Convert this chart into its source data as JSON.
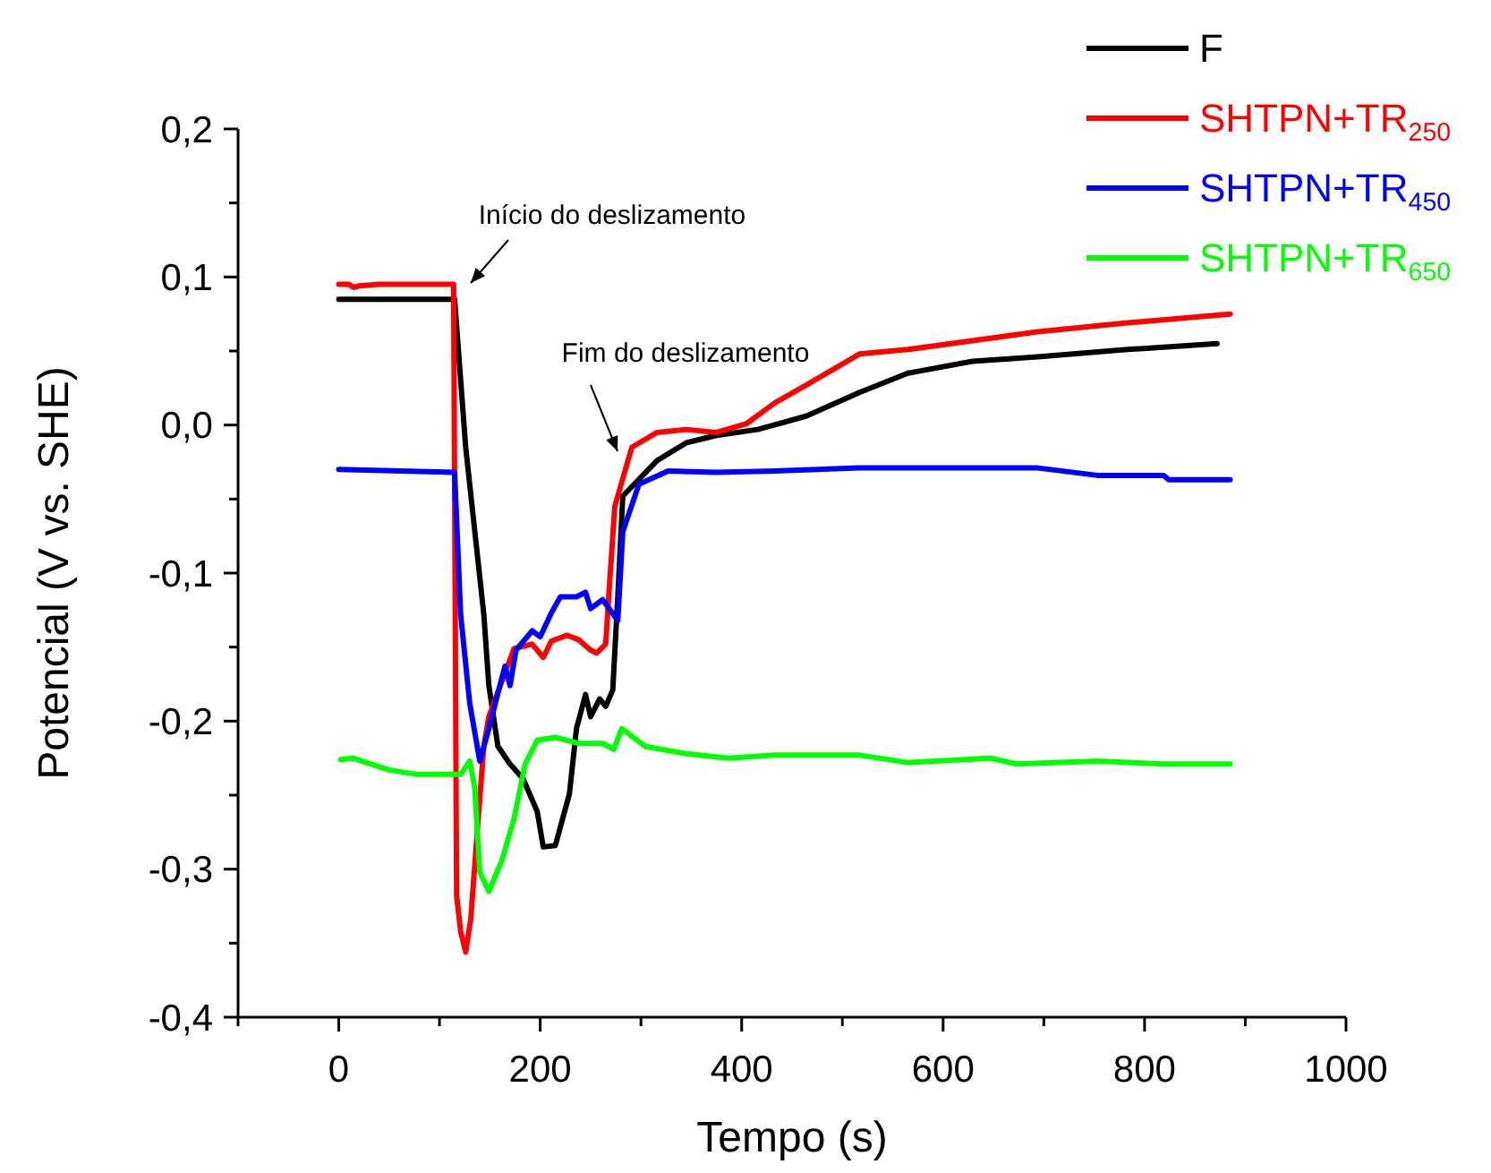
{
  "chart_data": {
    "type": "line",
    "xlabel": "Tempo (s)",
    "ylabel": "Potencial (V  vs. SHE)",
    "xlim": [
      -100,
      1000
    ],
    "ylim": [
      -0.4,
      0.2
    ],
    "xticks": [
      {
        "value": -100,
        "label": null
      },
      0,
      {
        "value": 100,
        "label": null
      },
      200,
      {
        "value": 300,
        "label": null
      },
      400,
      {
        "value": 500,
        "label": null
      },
      600,
      {
        "value": 700,
        "label": null
      },
      800,
      {
        "value": 900,
        "label": null
      },
      1000
    ],
    "yticks": [
      {
        "value": -0.4,
        "label": "-0,4"
      },
      {
        "value": -0.35,
        "label": null
      },
      {
        "value": -0.3,
        "label": "-0,3"
      },
      {
        "value": -0.25,
        "label": null
      },
      {
        "value": -0.2,
        "label": "-0,2"
      },
      {
        "value": -0.15,
        "label": null
      },
      {
        "value": -0.1,
        "label": "-0,1"
      },
      {
        "value": -0.05,
        "label": null
      },
      {
        "value": 0,
        "label": "0,0"
      },
      {
        "value": 0.05,
        "label": null
      },
      {
        "value": 0.1,
        "label": "0,1"
      },
      {
        "value": 0.15,
        "label": null
      },
      {
        "value": 0.2,
        "label": "0,2"
      }
    ],
    "legend": "top right",
    "annotations": [
      "Início do deslizamento",
      "Fim do deslizamento"
    ],
    "series": [
      {
        "name": "F",
        "color": "#000000",
        "x": [
          0,
          115,
          126,
          144,
          149,
          158,
          170,
          183,
          197,
          203,
          215,
          229,
          236,
          245,
          250,
          259,
          265,
          272,
          277,
          282,
          316,
          345,
          375,
          416,
          464,
          517,
          565,
          629,
          694,
          783,
          872
        ],
        "values": [
          0.085,
          0.085,
          -0.015,
          -0.128,
          -0.176,
          -0.217,
          -0.229,
          -0.239,
          -0.261,
          -0.285,
          -0.284,
          -0.249,
          -0.205,
          -0.182,
          -0.197,
          -0.185,
          -0.19,
          -0.179,
          -0.116,
          -0.048,
          -0.024,
          -0.012,
          -0.007,
          -0.003,
          0.006,
          0.022,
          0.035,
          0.043,
          0.046,
          0.051,
          0.055
        ]
      },
      {
        "name": "SHTPN+TR$_{250}$",
        "color": "#ff0000",
        "x": [
          0,
          10,
          15,
          20,
          40,
          114,
          117,
          121,
          126,
          131,
          138,
          144,
          149,
          162,
          174,
          192,
          203,
          211,
          227,
          238,
          250,
          256,
          265,
          268,
          274,
          291,
          316,
          345,
          375,
          405,
          433,
          464,
          517,
          565,
          694,
          783,
          885
        ],
        "values": [
          0.095,
          0.095,
          0.093,
          0.094,
          0.095,
          0.095,
          -0.318,
          -0.342,
          -0.356,
          -0.334,
          -0.27,
          -0.217,
          -0.197,
          -0.173,
          -0.151,
          -0.148,
          -0.157,
          -0.146,
          -0.142,
          -0.145,
          -0.152,
          -0.154,
          -0.148,
          -0.116,
          -0.055,
          -0.015,
          -0.005,
          -0.003,
          -0.005,
          0.001,
          0.015,
          0.027,
          0.048,
          0.051,
          0.063,
          0.069,
          0.075
        ]
      },
      {
        "name": "SHTPN+TR$_{450}$",
        "color": "#0000ff",
        "x": [
          0,
          115,
          121,
          130,
          140,
          149,
          158,
          165,
          170,
          176,
          192,
          200,
          211,
          220,
          236,
          245,
          250,
          262,
          277,
          282,
          298,
          327,
          375,
          433,
          517,
          694,
          753,
          819,
          824,
          885
        ],
        "values": [
          -0.03,
          -0.032,
          -0.128,
          -0.188,
          -0.227,
          -0.205,
          -0.181,
          -0.163,
          -0.176,
          -0.152,
          -0.139,
          -0.143,
          -0.127,
          -0.116,
          -0.116,
          -0.113,
          -0.124,
          -0.118,
          -0.132,
          -0.072,
          -0.04,
          -0.031,
          -0.032,
          -0.031,
          -0.029,
          -0.029,
          -0.034,
          -0.034,
          -0.037,
          -0.037
        ]
      },
      {
        "name": "SHTPN+TR$_{650}$",
        "color": "#00ff00",
        "x": [
          2,
          14,
          50,
          78,
          121,
          130,
          135,
          140,
          149,
          162,
          174,
          185,
          197,
          215,
          238,
          262,
          273,
          281,
          304,
          345,
          387,
          433,
          517,
          565,
          647,
          673,
          753,
          819,
          885
        ],
        "values": [
          -0.226,
          -0.225,
          -0.233,
          -0.236,
          -0.236,
          -0.227,
          -0.245,
          -0.302,
          -0.315,
          -0.294,
          -0.266,
          -0.229,
          -0.213,
          -0.211,
          -0.215,
          -0.215,
          -0.219,
          -0.205,
          -0.217,
          -0.222,
          -0.225,
          -0.223,
          -0.223,
          -0.228,
          -0.225,
          -0.229,
          -0.227,
          -0.229,
          -0.229
        ]
      }
    ]
  }
}
